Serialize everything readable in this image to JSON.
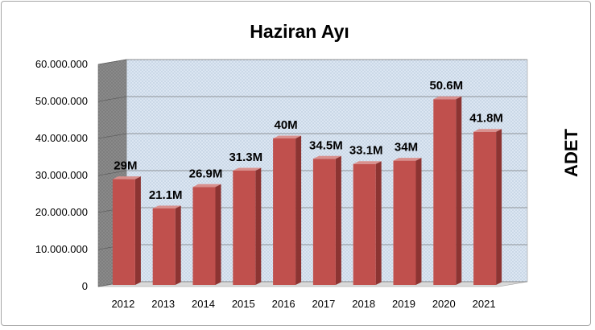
{
  "chart_data": {
    "type": "bar",
    "title": "Haziran Ayı",
    "xlabel": "",
    "ylabel": "ADET",
    "categories": [
      "2012",
      "2013",
      "2014",
      "2015",
      "2016",
      "2017",
      "2018",
      "2019",
      "2020",
      "2021"
    ],
    "values": [
      29000000,
      21100000,
      26900000,
      31300000,
      40000000,
      34500000,
      33100000,
      34000000,
      50600000,
      41800000
    ],
    "data_labels": [
      "29M",
      "21.1M",
      "26.9M",
      "31.3M",
      "40M",
      "34.5M",
      "33.1M",
      "34M",
      "50.6M",
      "41.8M"
    ],
    "ylim": [
      0,
      60000000
    ],
    "yticks": [
      0,
      10000000,
      20000000,
      30000000,
      40000000,
      50000000,
      60000000
    ],
    "ytick_labels": [
      "0",
      "10.000.000",
      "20.000.000",
      "30.000.000",
      "40.000.000",
      "50.000.000",
      "60.000.000"
    ],
    "grid": true,
    "legend": "none",
    "style": "3d",
    "colors": {
      "bar_front": "#c0504d",
      "bar_side": "#8c3432",
      "bar_top": "#d9908d",
      "wall": "#dbe5f1",
      "side_wall": "#7f7f7f",
      "floor": "#d9d9d9"
    }
  }
}
